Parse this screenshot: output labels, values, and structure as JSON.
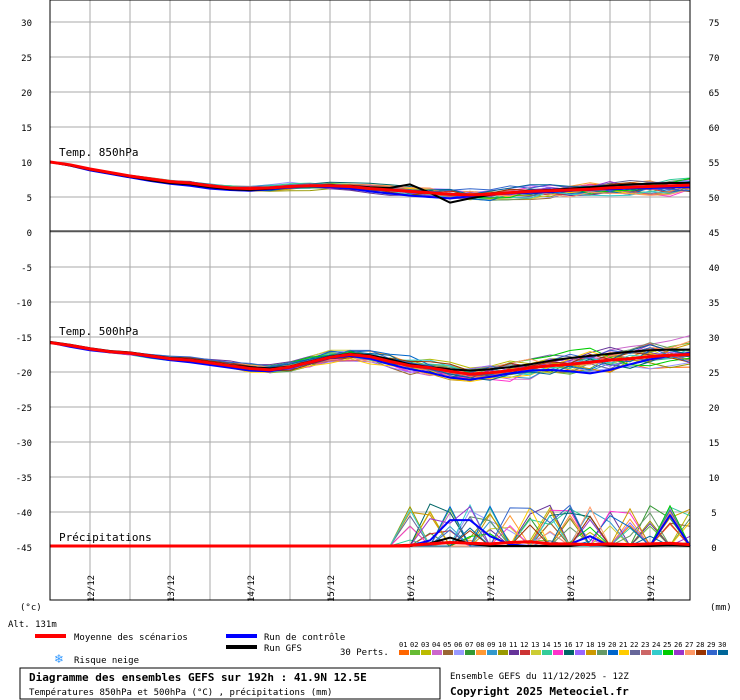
{
  "chart_data": {
    "type": "line",
    "title": "Diagramme des ensembles GEFS sur 192h : 41.9N 12.5E",
    "subtitle": "Températures 850hPa et 500hPa (°C) , précipitations (mm)",
    "run_label": "Ensemble GEFS du 11/12/2025 - 12Z",
    "copyright": "Copyright 2025 Meteociel.fr",
    "altitude": "Alt. 131m",
    "left_unit": "(°c)",
    "right_unit": "(mm)",
    "panel_labels": [
      "Temp. 850hPa",
      "Temp. 500hPa",
      "Précipitations"
    ],
    "x_ticks": [
      "12/12",
      "13/12",
      "14/12",
      "15/12",
      "16/12",
      "17/12",
      "18/12",
      "19/12"
    ],
    "left_axis_ticks": [
      30,
      25,
      20,
      15,
      10,
      5,
      0,
      -5,
      -10,
      -15,
      -20,
      -25,
      -30,
      -35,
      -40,
      -45
    ],
    "right_axis_ticks": [
      75,
      70,
      65,
      60,
      55,
      50,
      45,
      40,
      35,
      30,
      25,
      20,
      15,
      10,
      5,
      0
    ],
    "legend": {
      "mean": "Moyenne des scénarios",
      "control": "Run de contrôle",
      "gfs": "Run GFS",
      "snow": "Risque neige",
      "perts_label": "30 Perts.",
      "pert_ids": [
        "01",
        "02",
        "03",
        "04",
        "05",
        "06",
        "07",
        "08",
        "09",
        "10",
        "11",
        "12",
        "13",
        "14",
        "15",
        "16",
        "17",
        "18",
        "19",
        "20",
        "21",
        "22",
        "23",
        "24",
        "25",
        "26",
        "27",
        "28",
        "29",
        "30"
      ]
    },
    "colors": {
      "mean": "#ff0000",
      "control": "#0000ff",
      "gfs": "#000000",
      "grid": "#aaaaaa",
      "snow": "#3399ff",
      "perts": [
        "#ff6600",
        "#66bb33",
        "#bbbb00",
        "#cc66cc",
        "#996633",
        "#9999ff",
        "#339933",
        "#ff9933",
        "#3399cc",
        "#999900",
        "#663399",
        "#cc3333",
        "#cccc33",
        "#33cc99",
        "#ff33cc",
        "#006666",
        "#9966ff",
        "#cc9900",
        "#669966",
        "#0066cc",
        "#ffcc00",
        "#666699",
        "#cc6666",
        "#33cccc",
        "#00cc00",
        "#9933cc",
        "#ff9966",
        "#993300",
        "#3366cc",
        "#006699"
      ]
    },
    "x_hours": [
      0,
      6,
      12,
      18,
      24,
      30,
      36,
      42,
      48,
      54,
      60,
      66,
      72,
      78,
      84,
      90,
      96,
      102,
      108,
      114,
      120,
      126,
      132,
      138,
      144,
      150,
      156,
      162,
      168,
      174,
      180,
      186,
      192
    ],
    "series": [
      {
        "name": "Moyenne des scénarios",
        "panel": "t850",
        "values": [
          10,
          9.6,
          9,
          8.5,
          8,
          7.6,
          7.2,
          7,
          6.6,
          6.3,
          6.2,
          6.3,
          6.5,
          6.6,
          6.6,
          6.5,
          6.2,
          6,
          5.8,
          5.6,
          5.4,
          5.3,
          5.4,
          5.6,
          5.8,
          5.9,
          6,
          6.1,
          6.3,
          6.4,
          6.5,
          6.6,
          6.7
        ]
      },
      {
        "name": "Run de contrôle",
        "panel": "t850",
        "values": [
          10,
          9.5,
          8.8,
          8.3,
          7.8,
          7.3,
          6.9,
          6.6,
          6.2,
          6,
          5.9,
          6.1,
          6.4,
          6.5,
          6.4,
          6.2,
          5.8,
          5.5,
          5.2,
          5,
          4.8,
          5.1,
          5.4,
          5.5,
          5.6,
          5.7,
          5.9,
          6,
          6.1,
          6.2,
          6.3,
          6.4,
          6.4
        ]
      },
      {
        "name": "Run GFS",
        "panel": "t850",
        "values": [
          10,
          9.5,
          8.9,
          8.4,
          7.9,
          7.4,
          7,
          6.8,
          6.4,
          6.1,
          6,
          6.2,
          6.5,
          6.6,
          6.7,
          6.6,
          6.4,
          6.3,
          6.8,
          5.6,
          4.2,
          4.8,
          5.3,
          5.6,
          5.9,
          6,
          6.2,
          6.4,
          6.6,
          6.8,
          6.9,
          7,
          7
        ]
      },
      {
        "name": "Moyenne des scénarios",
        "panel": "t500",
        "values": [
          -15.8,
          -16.2,
          -16.7,
          -17.1,
          -17.3,
          -17.7,
          -18.1,
          -18.3,
          -18.7,
          -19.1,
          -19.5,
          -19.7,
          -19.3,
          -18.6,
          -17.9,
          -17.5,
          -17.8,
          -18.5,
          -19.1,
          -19.4,
          -19.9,
          -20.3,
          -20.1,
          -19.8,
          -19.4,
          -19.1,
          -18.9,
          -18.6,
          -18.3,
          -18.1,
          -17.8,
          -17.6,
          -17.5
        ]
      },
      {
        "name": "Run de contrôle",
        "panel": "t500",
        "values": [
          -15.8,
          -16.4,
          -16.9,
          -17.2,
          -17.4,
          -17.9,
          -18.3,
          -18.6,
          -19,
          -19.4,
          -19.8,
          -19.9,
          -19.4,
          -18.7,
          -18,
          -17.7,
          -18.1,
          -18.9,
          -19.6,
          -20.1,
          -20.8,
          -21.1,
          -20.7,
          -20.2,
          -19.8,
          -19.7,
          -19.9,
          -20.2,
          -19.7,
          -18.9,
          -18.2,
          -17.7,
          -17.3
        ]
      },
      {
        "name": "Run GFS",
        "panel": "t500",
        "values": [
          -15.7,
          -16.1,
          -16.6,
          -17,
          -17.2,
          -17.6,
          -18,
          -18.2,
          -18.6,
          -19,
          -19.3,
          -19.5,
          -19.2,
          -18.5,
          -17.8,
          -17.4,
          -17.6,
          -18.2,
          -18.9,
          -19.3,
          -19.6,
          -19.8,
          -19.6,
          -19.3,
          -18.9,
          -18.4,
          -18,
          -17.7,
          -17.4,
          -17.1,
          -16.9,
          -16.8,
          -16.8
        ]
      },
      {
        "name": "Moyenne des scénarios",
        "panel": "precip",
        "values": [
          0,
          0,
          0,
          0,
          0,
          0,
          0,
          0,
          0,
          0,
          0,
          0,
          0,
          0,
          0,
          0,
          0,
          0,
          0.1,
          0.3,
          0.5,
          0.4,
          0.3,
          0.5,
          0.6,
          0.3,
          0.3,
          0.2,
          0.3,
          0.2,
          0.3,
          0.4,
          0.2
        ]
      },
      {
        "name": "Run de contrôle",
        "panel": "precip",
        "values": [
          0,
          0,
          0,
          0,
          0,
          0,
          0,
          0,
          0,
          0,
          0,
          0,
          0,
          0,
          0,
          0,
          0,
          0,
          0,
          0.8,
          3.7,
          3.7,
          1.4,
          0.2,
          0,
          0,
          0.3,
          1.4,
          0,
          0.2,
          0,
          4.4,
          0
        ]
      },
      {
        "name": "Run GFS",
        "panel": "precip",
        "values": [
          0,
          0,
          0,
          0,
          0,
          0,
          0,
          0,
          0,
          0,
          0,
          0,
          0,
          0,
          0,
          0,
          0,
          0,
          0,
          0.4,
          1.2,
          0.3,
          0,
          0,
          0,
          0,
          0,
          0.3,
          0,
          0,
          0,
          0.1,
          0
        ]
      }
    ]
  }
}
